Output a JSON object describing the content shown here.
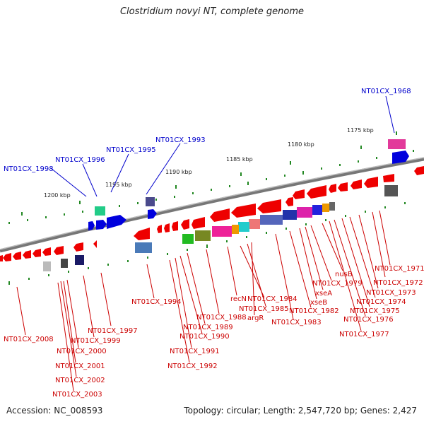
{
  "title": "Clostridium novyi NT, complete genome",
  "accession": "Accession: NC_008593",
  "summary": "Topology: circular; Length: 2,547,720 bp; Genes: 2,427",
  "scale_labels": [
    "1175 kbp",
    "1180 kbp",
    "1185 kbp",
    "1190 kbp",
    "1195 kbp",
    "1200 kbp"
  ],
  "upper_gene_labels": [
    "NT01CX_1968",
    "NT01CX_1993",
    "NT01CX_1995",
    "NT01CX_1996",
    "NT01CX_1998"
  ],
  "lower_gene_labels": [
    "NT01CX_1971",
    "NT01CX_1972",
    "NT01CX_1973",
    "NT01CX_1974",
    "NT01CX_1975",
    "NT01CX_1976",
    "NT01CX_1977",
    "nusB",
    "NT01CX_1979",
    "xseA",
    "xseB",
    "NT01CX_1982",
    "NT01CX_1983",
    "recN",
    "NT01CX_1984",
    "NT01CX_1985",
    "argR",
    "NT01CX_1988",
    "NT01CX_1989",
    "NT01CX_1990",
    "NT01CX_1991",
    "NT01CX_1992",
    "NT01CX_1994",
    "NT01CX_1997",
    "NT01CX_1999",
    "NT01CX_2000",
    "NT01CX_2001",
    "NT01CX_2002",
    "NT01CX_2003",
    "NT01CX_2008"
  ],
  "colors": {
    "backbone": "#888888",
    "reverse_gene": "#ee0000",
    "forward_gene": "#0000dd",
    "tick": "#228822",
    "label_reverse": "#cc0000",
    "label_forward": "#0000cc"
  }
}
